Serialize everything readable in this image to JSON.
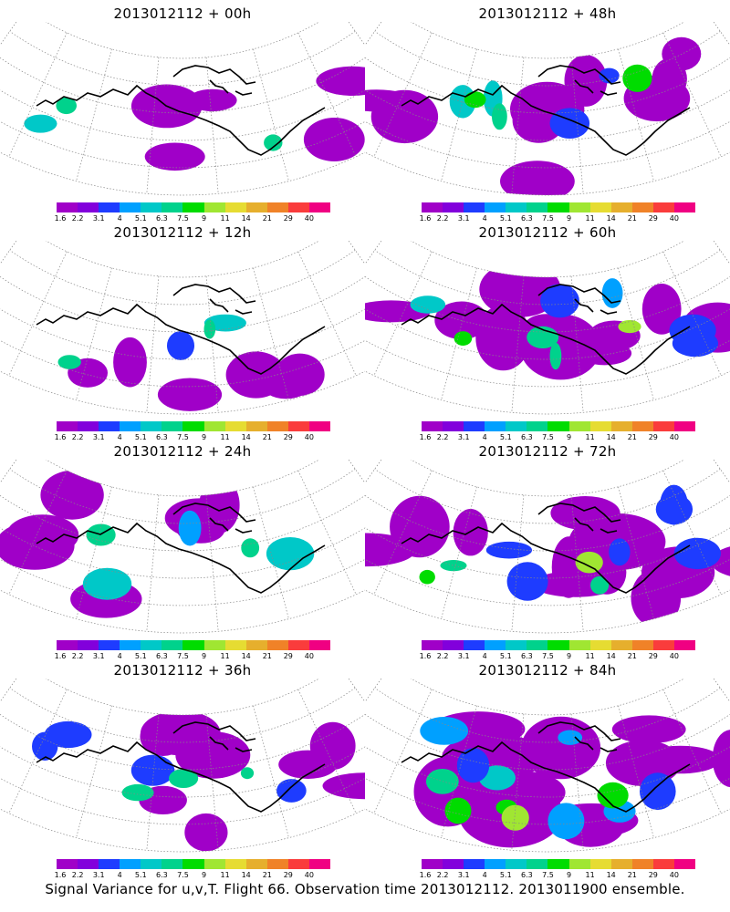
{
  "panels": [
    {
      "title": "2013012112 + 00h",
      "coverage": 0.18,
      "intensity": 0.25
    },
    {
      "title": "2013012112 + 48h",
      "coverage": 0.55,
      "intensity": 0.55
    },
    {
      "title": "2013012112 + 12h",
      "coverage": 0.25,
      "intensity": 0.32
    },
    {
      "title": "2013012112 + 60h",
      "coverage": 0.68,
      "intensity": 0.62
    },
    {
      "title": "2013012112 + 24h",
      "coverage": 0.35,
      "intensity": 0.4
    },
    {
      "title": "2013012112 + 72h",
      "coverage": 0.78,
      "intensity": 0.72
    },
    {
      "title": "2013012112 + 36h",
      "coverage": 0.45,
      "intensity": 0.48
    },
    {
      "title": "2013012112 + 84h",
      "coverage": 0.88,
      "intensity": 0.82
    }
  ],
  "colorbar": {
    "colors": [
      "#a000c8",
      "#8200dc",
      "#1e3cff",
      "#00a0ff",
      "#00c8c8",
      "#00d28c",
      "#00dc00",
      "#a0e632",
      "#e6dc32",
      "#e6af2d",
      "#f08228",
      "#fa3c3c",
      "#f00082"
    ],
    "ticks": [
      "1.6",
      "2.2",
      "3.1",
      "4",
      "5.1",
      "6.3",
      "7.5",
      "9",
      "11",
      "14",
      "21",
      "29",
      "40"
    ]
  },
  "footer": "Signal Variance for u,v,T. Flight 66. Observation time 2013012112. 2013011900 ensemble."
}
